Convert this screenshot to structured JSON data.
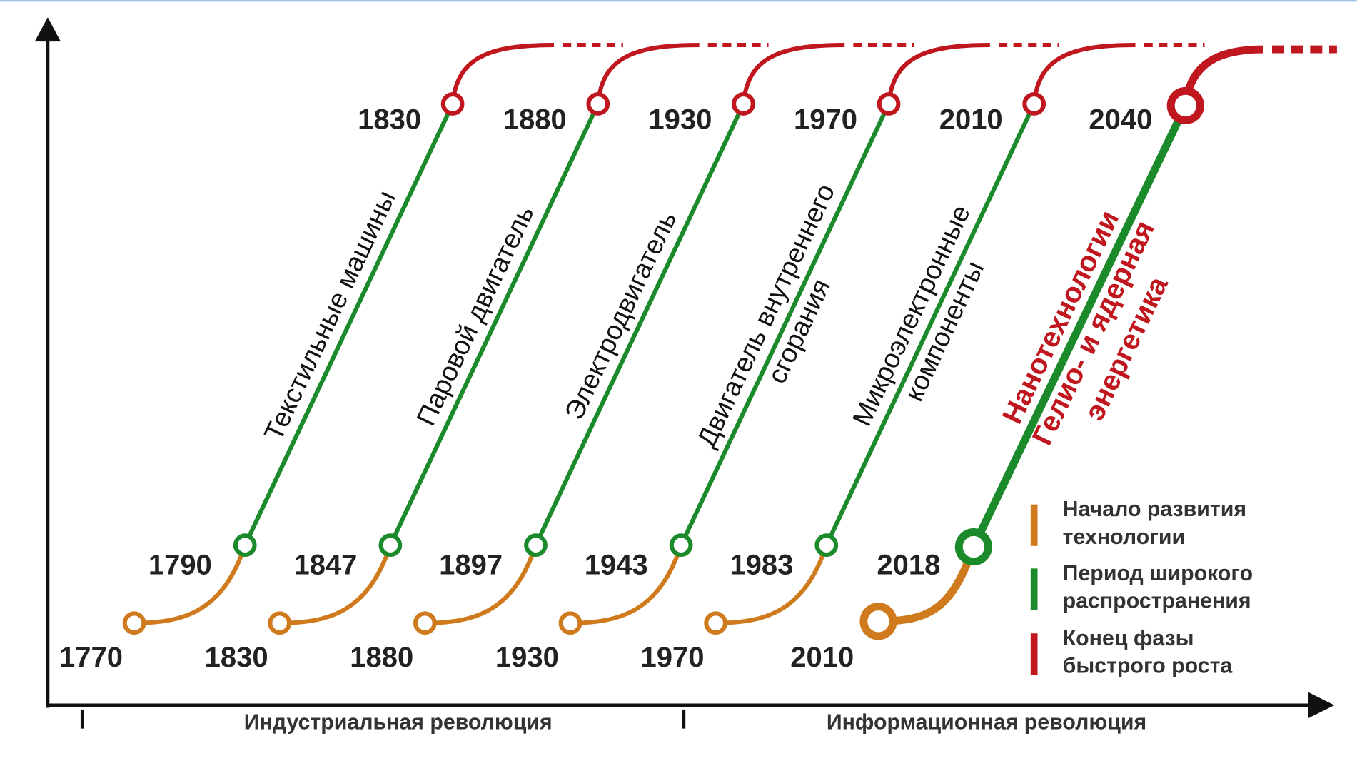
{
  "waves": [
    {
      "start": "1770",
      "spread": "1790",
      "end": "1830",
      "label": [
        "Текстильные машины"
      ]
    },
    {
      "start": "1830",
      "spread": "1847",
      "end": "1880",
      "label": [
        "Паровой двигатель"
      ]
    },
    {
      "start": "1880",
      "spread": "1897",
      "end": "1930",
      "label": [
        "Электродвигатель"
      ]
    },
    {
      "start": "1930",
      "spread": "1943",
      "end": "1970",
      "label": [
        "Двигатель внутреннего",
        "сгорания"
      ]
    },
    {
      "start": "1970",
      "spread": "1983",
      "end": "2010",
      "label": [
        "Микроэлектронные",
        "компоненты"
      ]
    },
    {
      "start": "2010",
      "spread": "2018",
      "end": "2040",
      "label": [
        "Нанотехнологии",
        "Гелио- и ядерная",
        "энергетика"
      ]
    }
  ],
  "legend": [
    {
      "lines": [
        "Начало развития",
        "технологии"
      ]
    },
    {
      "lines": [
        "Период широкого",
        "распространения"
      ]
    },
    {
      "lines": [
        "Конец фазы",
        "быстрого роста"
      ]
    }
  ],
  "eras": [
    "Индустриальная революция",
    "Информационная революция"
  ]
}
